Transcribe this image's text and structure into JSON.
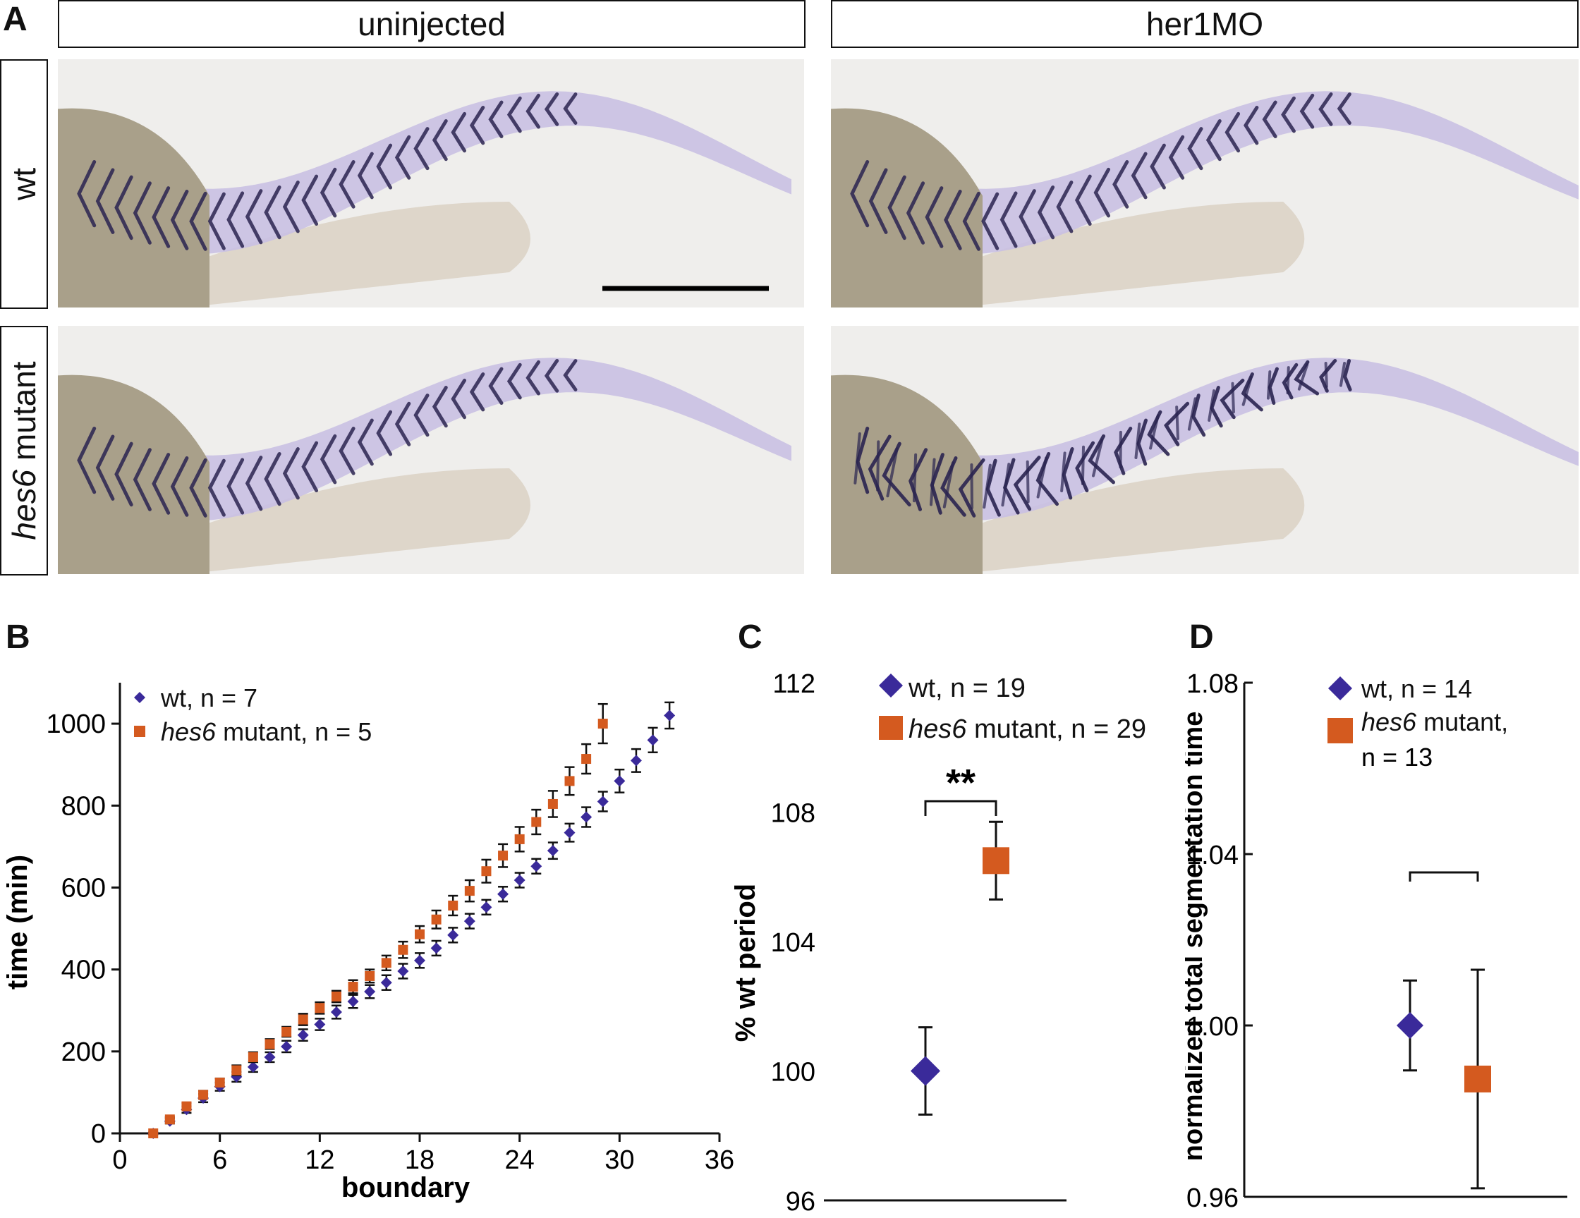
{
  "panel_a": {
    "letter": "A",
    "columns": [
      "uninjected",
      "her1MO"
    ],
    "rows": [
      {
        "italic": "",
        "text": "wt"
      },
      {
        "italic": "hes6",
        "text": " mutant"
      }
    ]
  },
  "colors": {
    "wt": "#3a2a9a",
    "mutant": "#d45a1f",
    "stain": "#2a2350",
    "yolk": "#a9a08a",
    "tissue": "#c9c0e3"
  },
  "chart_data": [
    {
      "panel": "B",
      "type": "scatter",
      "title": "",
      "xlabel": "boundary",
      "ylabel": "time (min)",
      "xlim": [
        0,
        36
      ],
      "ylim": [
        0,
        1100
      ],
      "xticks": [
        0,
        6,
        12,
        18,
        24,
        30,
        36
      ],
      "yticks": [
        0,
        200,
        400,
        600,
        800,
        1000
      ],
      "legend_position": "top-left",
      "series": [
        {
          "name": "wt, n = 7",
          "name_italic": "",
          "name_rest": "wt, n = 7",
          "marker": "diamond",
          "x": [
            2,
            3,
            4,
            5,
            6,
            7,
            8,
            9,
            10,
            11,
            12,
            13,
            14,
            15,
            16,
            17,
            18,
            19,
            20,
            21,
            22,
            23,
            24,
            25,
            26,
            27,
            28,
            29,
            30,
            31,
            32,
            33
          ],
          "y": [
            0,
            30,
            58,
            86,
            114,
            138,
            162,
            186,
            212,
            240,
            266,
            296,
            322,
            346,
            368,
            396,
            422,
            452,
            484,
            518,
            552,
            584,
            618,
            652,
            690,
            734,
            772,
            810,
            860,
            910,
            960,
            1020
          ],
          "err": [
            2,
            6,
            8,
            10,
            10,
            12,
            12,
            12,
            14,
            14,
            14,
            16,
            16,
            16,
            18,
            18,
            18,
            18,
            18,
            18,
            18,
            18,
            18,
            18,
            20,
            22,
            24,
            24,
            28,
            28,
            30,
            32
          ]
        },
        {
          "name": "hes6 mutant, n = 5",
          "name_italic": "hes6",
          "name_rest": " mutant, n = 5",
          "marker": "square",
          "x": [
            2,
            3,
            4,
            5,
            6,
            7,
            8,
            9,
            10,
            11,
            12,
            13,
            14,
            15,
            16,
            17,
            18,
            19,
            20,
            21,
            22,
            23,
            24,
            25,
            26,
            27,
            28,
            29
          ],
          "y": [
            0,
            34,
            66,
            94,
            124,
            154,
            186,
            218,
            248,
            278,
            306,
            334,
            358,
            384,
            416,
            448,
            486,
            522,
            556,
            592,
            640,
            678,
            718,
            760,
            804,
            860,
            914,
            1000
          ],
          "err": [
            2,
            6,
            8,
            10,
            10,
            12,
            12,
            12,
            12,
            14,
            14,
            14,
            16,
            16,
            18,
            20,
            20,
            22,
            24,
            26,
            28,
            28,
            30,
            30,
            32,
            34,
            36,
            48
          ]
        }
      ]
    },
    {
      "panel": "C",
      "type": "scatter",
      "title": "",
      "xlabel": "",
      "ylabel": "% wt period",
      "ylim": [
        96,
        112
      ],
      "yticks": [
        96,
        100,
        104,
        108,
        112
      ],
      "legend_position": "top",
      "significance": "**",
      "series": [
        {
          "name": "wt, n = 19",
          "name_italic": "",
          "name_rest": "wt, n = 19",
          "marker": "diamond",
          "y": 100.0,
          "err": 1.35
        },
        {
          "name": "hes6 mutant, n = 29",
          "name_italic": "hes6",
          "name_rest": " mutant, n = 29",
          "marker": "square",
          "y": 106.5,
          "err": 1.2
        }
      ]
    },
    {
      "panel": "D",
      "type": "scatter",
      "title": "",
      "xlabel": "",
      "ylabel": "normalized total segmentation time",
      "ylim": [
        0.96,
        1.08
      ],
      "yticks": [
        "0.96",
        "1.00",
        "1.04",
        "1.08"
      ],
      "legend_position": "top",
      "series": [
        {
          "name": "wt, n = 14",
          "name_italic": "",
          "name_rest": "wt, n = 14",
          "marker": "diamond",
          "y": 1.0,
          "err": 0.0105
        },
        {
          "name": "hes6 mutant, n = 13",
          "name_italic": "hes6",
          "name_rest": " mutant,",
          "name_line2": "n = 13",
          "marker": "square",
          "y": 0.9875,
          "err": 0.0255
        }
      ]
    }
  ]
}
